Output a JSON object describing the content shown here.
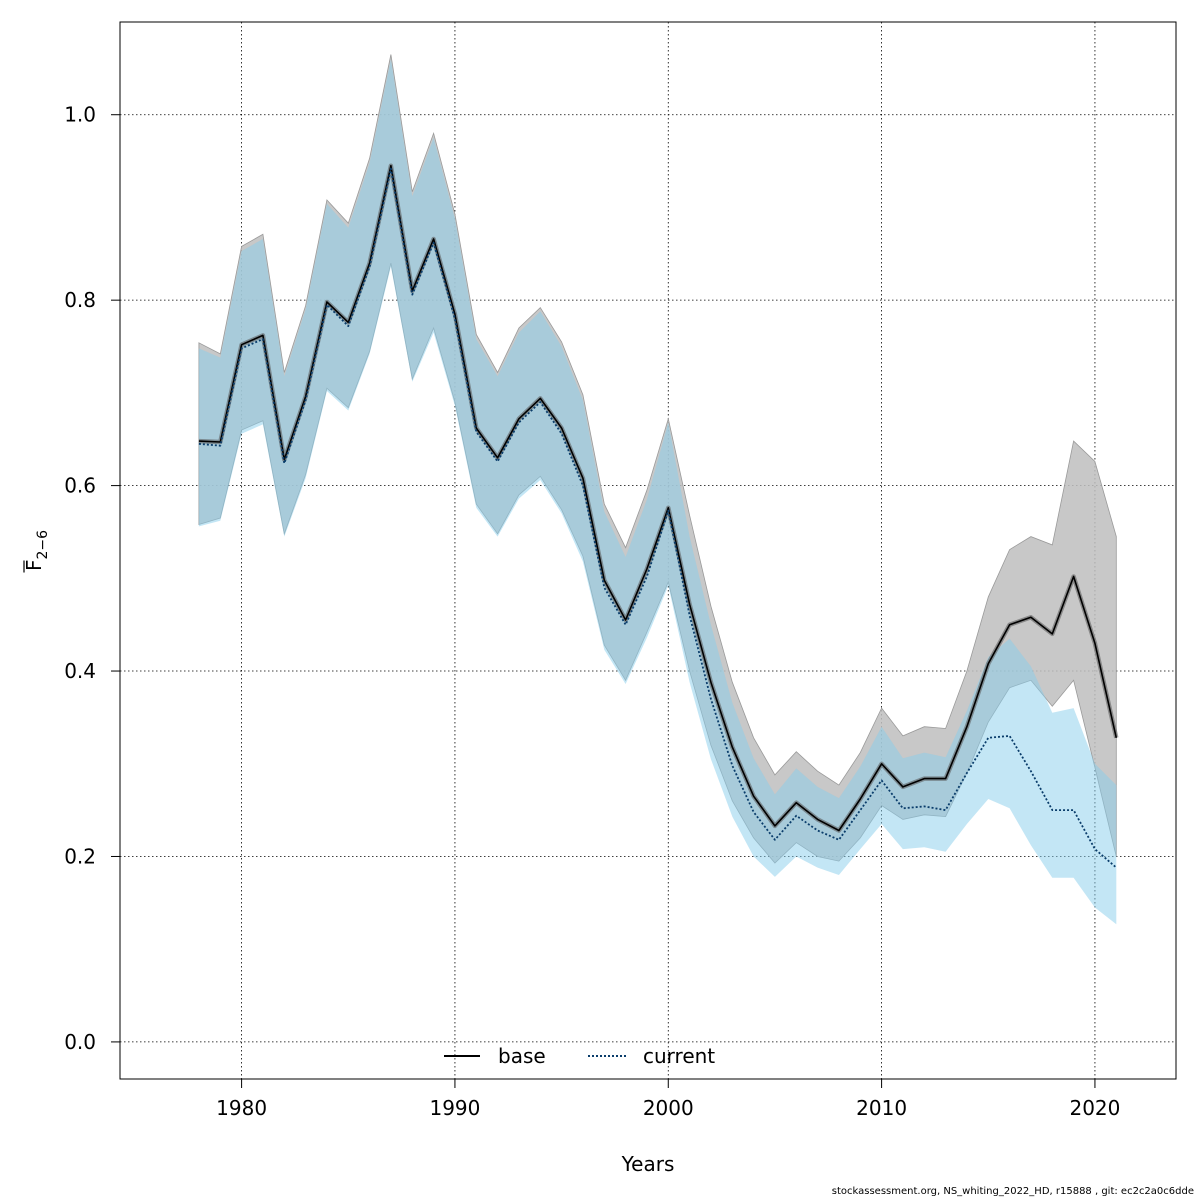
{
  "footer": "stockassessment.org, NS_whiting_2022_HD, r15888 , git: ec2c2a0c6dde",
  "chart_data": {
    "type": "line",
    "xlabel": "Years",
    "ylabel_main": "F",
    "ylabel_sub": "2−6",
    "xlim": [
      1974.3,
      2023.8
    ],
    "ylim": [
      -0.04,
      1.1
    ],
    "xticks": [
      1980,
      1990,
      2000,
      2010,
      2020
    ],
    "yticks": [
      0.0,
      0.2,
      0.4,
      0.6,
      0.8,
      1.0
    ],
    "ytick_labels": [
      "0.0",
      "0.2",
      "0.4",
      "0.6",
      "0.8",
      "1.0"
    ],
    "grid": true,
    "legend_position": "bottom-center",
    "x": [
      1978,
      1979,
      1980,
      1981,
      1982,
      1983,
      1984,
      1985,
      1986,
      1987,
      1988,
      1989,
      1990,
      1991,
      1992,
      1993,
      1994,
      1995,
      1996,
      1997,
      1998,
      1999,
      2000,
      2001,
      2002,
      2003,
      2004,
      2005,
      2006,
      2007,
      2008,
      2009,
      2010,
      2011,
      2012,
      2013,
      2014,
      2015,
      2016,
      2017,
      2018,
      2019,
      2020,
      2021
    ],
    "series": [
      {
        "name": "base",
        "color": "#000000",
        "band_color": "#bebebe",
        "dash": "solid",
        "values": [
          0.648,
          0.647,
          0.752,
          0.762,
          0.628,
          0.696,
          0.798,
          0.776,
          0.84,
          0.945,
          0.81,
          0.866,
          0.785,
          0.662,
          0.63,
          0.672,
          0.694,
          0.662,
          0.608,
          0.498,
          0.455,
          0.51,
          0.576,
          0.472,
          0.388,
          0.318,
          0.265,
          0.233,
          0.258,
          0.24,
          0.228,
          0.262,
          0.3,
          0.275,
          0.284,
          0.284,
          0.34,
          0.408,
          0.45,
          0.458,
          0.44,
          0.502,
          0.43,
          0.328
        ],
        "lower": [
          0.558,
          0.565,
          0.66,
          0.67,
          0.548,
          0.612,
          0.705,
          0.684,
          0.745,
          0.84,
          0.715,
          0.77,
          0.69,
          0.58,
          0.548,
          0.59,
          0.61,
          0.574,
          0.524,
          0.428,
          0.39,
          0.442,
          0.496,
          0.4,
          0.32,
          0.26,
          0.22,
          0.193,
          0.215,
          0.2,
          0.195,
          0.22,
          0.255,
          0.24,
          0.245,
          0.243,
          0.29,
          0.345,
          0.382,
          0.39,
          0.362,
          0.39,
          0.296,
          0.2
        ],
        "upper": [
          0.754,
          0.742,
          0.858,
          0.871,
          0.722,
          0.794,
          0.908,
          0.883,
          0.953,
          1.065,
          0.917,
          0.98,
          0.893,
          0.763,
          0.722,
          0.77,
          0.792,
          0.755,
          0.698,
          0.58,
          0.533,
          0.595,
          0.672,
          0.568,
          0.47,
          0.388,
          0.328,
          0.288,
          0.313,
          0.292,
          0.277,
          0.312,
          0.36,
          0.33,
          0.34,
          0.338,
          0.4,
          0.48,
          0.531,
          0.545,
          0.536,
          0.648,
          0.626,
          0.545
        ]
      },
      {
        "name": "current",
        "color": "#0a3d6b",
        "band_color": "#87ceeb",
        "dash": "dotted",
        "values": [
          0.645,
          0.643,
          0.748,
          0.758,
          0.624,
          0.692,
          0.795,
          0.772,
          0.836,
          0.942,
          0.806,
          0.862,
          0.78,
          0.658,
          0.626,
          0.668,
          0.69,
          0.656,
          0.6,
          0.49,
          0.45,
          0.502,
          0.573,
          0.46,
          0.37,
          0.298,
          0.248,
          0.218,
          0.244,
          0.228,
          0.218,
          0.25,
          0.282,
          0.252,
          0.254,
          0.25,
          0.29,
          0.328,
          0.33,
          0.292,
          0.25,
          0.25,
          0.208,
          0.188
        ],
        "lower": [
          0.556,
          0.562,
          0.656,
          0.666,
          0.545,
          0.608,
          0.702,
          0.681,
          0.742,
          0.836,
          0.712,
          0.765,
          0.686,
          0.576,
          0.545,
          0.586,
          0.606,
          0.57,
          0.518,
          0.423,
          0.386,
          0.436,
          0.492,
          0.388,
          0.305,
          0.243,
          0.2,
          0.178,
          0.2,
          0.188,
          0.18,
          0.208,
          0.235,
          0.208,
          0.21,
          0.205,
          0.235,
          0.262,
          0.252,
          0.212,
          0.177,
          0.177,
          0.145,
          0.127
        ],
        "upper": [
          0.748,
          0.738,
          0.853,
          0.866,
          0.718,
          0.79,
          0.904,
          0.878,
          0.948,
          1.06,
          0.912,
          0.975,
          0.888,
          0.758,
          0.718,
          0.765,
          0.788,
          0.75,
          0.692,
          0.572,
          0.523,
          0.585,
          0.668,
          0.545,
          0.45,
          0.366,
          0.306,
          0.267,
          0.295,
          0.275,
          0.263,
          0.297,
          0.34,
          0.306,
          0.312,
          0.307,
          0.357,
          0.415,
          0.435,
          0.405,
          0.355,
          0.36,
          0.3,
          0.277
        ]
      }
    ]
  }
}
